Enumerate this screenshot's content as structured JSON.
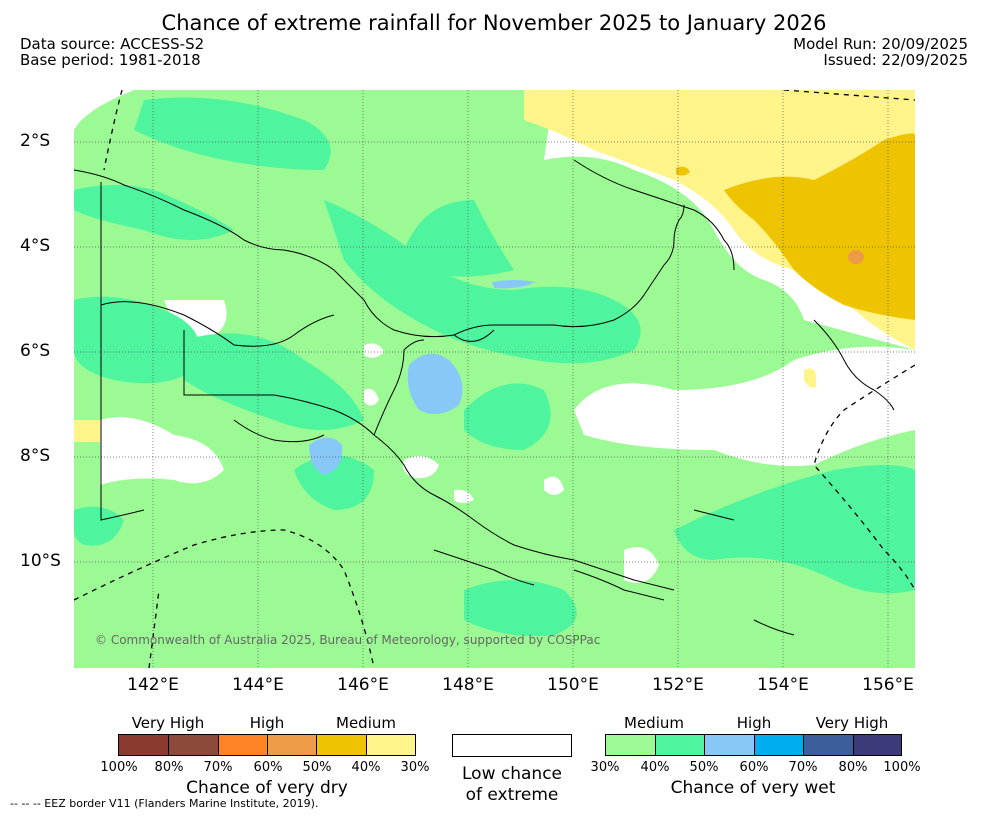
{
  "header": {
    "title": "Chance of extreme rainfall for November 2025 to January 2026",
    "data_source": "Data source: ACCESS-S2",
    "base_period": "Base period: 1981-2018",
    "model_run": "Model Run: 20/09/2025",
    "issued": "Issued: 22/09/2025"
  },
  "map": {
    "lat_labels": [
      "2°S",
      "4°S",
      "6°S",
      "8°S",
      "10°S"
    ],
    "lon_labels": [
      "142°E",
      "144°E",
      "146°E",
      "148°E",
      "150°E",
      "152°E",
      "154°E",
      "156°E"
    ],
    "copyright": "© Commonwealth of Australia 2025, Bureau of Meteorology, supported by COSPPac"
  },
  "legend": {
    "dry": {
      "heads": [
        "Very High",
        "High",
        "Medium"
      ],
      "ticks": [
        "100%",
        "80%",
        "70%",
        "60%",
        "50%",
        "40%",
        "30%"
      ],
      "title": "Chance of very dry",
      "colors": [
        "#8b3a30",
        "#8b4a3a",
        "#ff8426",
        "#ee9b48",
        "#eec400",
        "#fff48a"
      ]
    },
    "low": {
      "line1": "Low chance",
      "line2": "of extreme"
    },
    "wet": {
      "heads": [
        "Medium",
        "High",
        "Very High"
      ],
      "ticks": [
        "30%",
        "40%",
        "50%",
        "60%",
        "70%",
        "80%",
        "100%"
      ],
      "title": "Chance of very wet",
      "colors": [
        "#9cfa94",
        "#4ff59e",
        "#87c8f9",
        "#00aeef",
        "#3c5e9a",
        "#3c3a78"
      ]
    },
    "eez_note": "--  --  -- EEZ border V11 (Flanders Marine Institute, 2019)."
  }
}
